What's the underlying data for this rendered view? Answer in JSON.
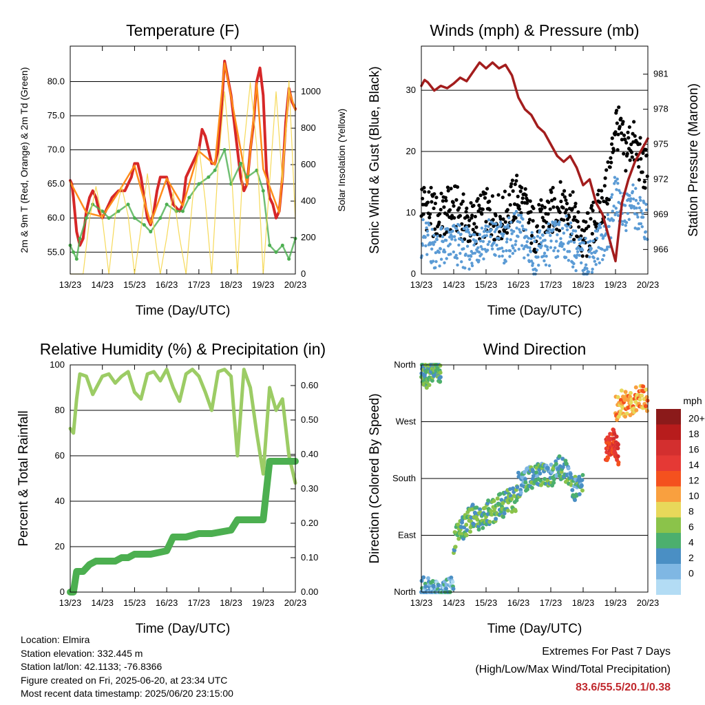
{
  "chart_data": [
    {
      "type": "line",
      "title": "Temperature (F)",
      "xlabel": "Time (Day/UTC)",
      "ylabel": "2m & 9m T (Red, Orange) & 2m Td (Green)",
      "ylabel_right": "Solar Insolation (Yellow)",
      "x_ticks": [
        "13/23",
        "14/23",
        "15/23",
        "16/23",
        "17/23",
        "18/23",
        "19/23",
        "20/23"
      ],
      "y_ticks": [
        "55.0",
        "60.0",
        "65.0",
        "70.0",
        "75.0",
        "80.0"
      ],
      "y_right_ticks": [
        "0",
        "200",
        "400",
        "600",
        "800",
        "1000"
      ],
      "ylim": [
        51.8,
        85.2
      ],
      "ylim_right": [
        0,
        1250
      ],
      "grid": true,
      "series": [
        {
          "name": "2m T",
          "color": "#d62728",
          "x": [
            0,
            0.05,
            0.1,
            0.2,
            0.3,
            0.4,
            0.5,
            0.6,
            0.7,
            0.8,
            0.9,
            1.0,
            1.1,
            1.3,
            1.5,
            1.7,
            1.9,
            2.0,
            2.1,
            2.2,
            2.3,
            2.4,
            2.5,
            2.6,
            2.7,
            2.8,
            3.0,
            3.2,
            3.4,
            3.5,
            3.6,
            3.8,
            4.0,
            4.1,
            4.2,
            4.3,
            4.4,
            4.5,
            4.6,
            4.7,
            4.8,
            5.0,
            5.2,
            5.3,
            5.4,
            5.5,
            5.6,
            5.7,
            5.8,
            5.9,
            6.0,
            6.1,
            6.2,
            6.3,
            6.4,
            6.5,
            6.6,
            6.7,
            6.8,
            6.9,
            7.0
          ],
          "y": [
            65.5,
            65,
            63,
            58,
            56,
            57,
            61,
            63,
            64,
            63,
            61,
            60,
            61,
            63,
            64,
            64,
            66,
            68,
            68,
            66,
            63,
            60,
            59,
            61,
            64,
            66,
            66,
            62,
            61,
            62,
            66,
            68,
            70,
            73,
            72,
            70,
            68,
            68,
            70,
            76,
            83,
            78,
            70,
            66,
            64,
            65,
            70,
            74,
            80,
            82,
            78,
            67,
            63,
            62,
            60,
            61,
            66,
            74,
            79,
            77,
            76
          ]
        },
        {
          "name": "9m T",
          "color": "#ff8c1a",
          "x": [
            0,
            0.5,
            1.0,
            1.5,
            2.0,
            2.5,
            3.0,
            3.5,
            4.0,
            4.5,
            4.8,
            5.0,
            5.5,
            5.8,
            6.0,
            6.5,
            6.8,
            7.0
          ],
          "y": [
            65.3,
            60.8,
            60.2,
            63.8,
            67.7,
            59.2,
            65.8,
            61.8,
            69.8,
            67.8,
            82.7,
            77.8,
            64.8,
            79.8,
            67.2,
            60.8,
            78.8,
            75.8
          ]
        },
        {
          "name": "2m Td",
          "color": "#4caf50",
          "x": [
            0,
            0.1,
            0.2,
            0.3,
            0.5,
            0.7,
            1.0,
            1.2,
            1.5,
            1.8,
            2.0,
            2.3,
            2.5,
            2.8,
            3.0,
            3.3,
            3.5,
            3.7,
            4.0,
            4.3,
            4.5,
            4.8,
            5.0,
            5.3,
            5.5,
            5.8,
            6.0,
            6.2,
            6.4,
            6.6,
            6.8,
            7.0
          ],
          "y": [
            56,
            55,
            54,
            57,
            60,
            62,
            61,
            60,
            61,
            62,
            60,
            59,
            58,
            60,
            62,
            61,
            61,
            63,
            65,
            66,
            67,
            70,
            65,
            68,
            66,
            67,
            64,
            56,
            55,
            56,
            54,
            57
          ]
        },
        {
          "name": "Solar Insolation",
          "color": "#f5d547",
          "axis": "right",
          "x": [
            0,
            0.4,
            0.6,
            0.8,
            1.0,
            1.2,
            1.4,
            1.6,
            1.8,
            2.0,
            2.2,
            2.4,
            2.6,
            2.8,
            3.0,
            3.2,
            3.4,
            3.6,
            3.8,
            4.0,
            4.2,
            4.4,
            4.6,
            4.8,
            5.0,
            5.2,
            5.4,
            5.6,
            5.8,
            6.0,
            6.2,
            6.4,
            6.6,
            6.8,
            7.0
          ],
          "y": [
            0,
            0,
            300,
            480,
            300,
            0,
            320,
            480,
            320,
            0,
            250,
            550,
            250,
            0,
            200,
            450,
            200,
            0,
            400,
            700,
            400,
            0,
            600,
            1000,
            600,
            0,
            700,
            1050,
            700,
            0,
            500,
            1000,
            500,
            1060,
            300
          ]
        }
      ]
    },
    {
      "type": "scatter",
      "title": "Winds (mph) & Pressure (mb)",
      "xlabel": "Time (Day/UTC)",
      "ylabel": "Sonic Wind & Gust (Blue, Black)",
      "ylabel_right": "Station Pressure (Maroon)",
      "x_ticks": [
        "13/23",
        "14/23",
        "15/23",
        "16/23",
        "17/23",
        "18/23",
        "19/23",
        "20/23"
      ],
      "y_ticks": [
        "0",
        "10",
        "20",
        "30"
      ],
      "y_right_ticks": [
        "966",
        "969",
        "972",
        "975",
        "978",
        "981"
      ],
      "ylim": [
        0,
        37.2
      ],
      "ylim_right": [
        963.9,
        983.4
      ],
      "grid": true,
      "series": [
        {
          "name": "Gust",
          "color": "#000000",
          "x": [
            0,
            0.5,
            1.0,
            1.5,
            2.0,
            2.5,
            3.0,
            3.5,
            4.0,
            4.5,
            5.0,
            5.5,
            5.8,
            6.0,
            6.3,
            6.5,
            6.8,
            7.0
          ],
          "y": [
            12,
            9,
            11,
            8,
            10,
            9,
            13,
            7,
            10,
            12,
            5,
            10,
            15,
            25,
            20,
            22,
            18,
            16
          ]
        },
        {
          "name": "Wind",
          "color": "#5b9bd5",
          "x": [
            0,
            0.5,
            1.0,
            1.5,
            2.0,
            2.5,
            3.0,
            3.5,
            4.0,
            4.5,
            5.0,
            5.5,
            5.8,
            6.0,
            6.3,
            6.5,
            6.8,
            7.0
          ],
          "y": [
            6,
            4,
            5,
            4,
            6,
            5,
            7,
            3,
            5,
            6,
            2,
            5,
            7,
            13,
            10,
            12,
            9,
            8
          ]
        },
        {
          "name": "Station Pressure",
          "color": "#a31d1d",
          "axis": "right",
          "x": [
            0,
            0.1,
            0.2,
            0.4,
            0.6,
            0.8,
            1.0,
            1.2,
            1.4,
            1.6,
            1.8,
            2.0,
            2.2,
            2.4,
            2.6,
            2.8,
            3.0,
            3.2,
            3.4,
            3.6,
            3.8,
            4.0,
            4.2,
            4.4,
            4.6,
            4.8,
            5.0,
            5.2,
            5.4,
            5.6,
            5.8,
            6.0,
            6.2,
            6.4,
            6.6,
            6.8,
            7.0
          ],
          "y": [
            980.0,
            980.5,
            980.3,
            979.6,
            980.0,
            979.8,
            980.2,
            980.7,
            980.4,
            981.2,
            982.0,
            981.5,
            982.0,
            981.5,
            981.8,
            980.9,
            979.0,
            978.0,
            977.5,
            976.5,
            976.0,
            975.0,
            974.0,
            973.5,
            974.0,
            973.0,
            971.5,
            972.0,
            970.0,
            969.0,
            967.0,
            965.0,
            970.0,
            972.0,
            973.5,
            974.5,
            975.5
          ]
        }
      ]
    },
    {
      "type": "line",
      "title": "Relative Humidity (%) & Precipitation (in)",
      "xlabel": "Time (Day/UTC)",
      "ylabel": "Percent & Total Rainfall",
      "x_ticks": [
        "13/23",
        "14/23",
        "15/23",
        "16/23",
        "17/23",
        "18/23",
        "19/23",
        "20/23"
      ],
      "y_ticks": [
        "0",
        "20",
        "40",
        "60",
        "80",
        "100"
      ],
      "y_right_ticks": [
        "0.00",
        "0.10",
        "0.20",
        "0.30",
        "0.40",
        "0.50",
        "0.60"
      ],
      "ylim": [
        0,
        100
      ],
      "ylim_right": [
        0,
        0.66
      ],
      "grid": true,
      "series": [
        {
          "name": "Relative Humidity",
          "color": "#9ccc65",
          "x": [
            0,
            0.1,
            0.2,
            0.3,
            0.5,
            0.7,
            1.0,
            1.2,
            1.4,
            1.6,
            1.8,
            2.0,
            2.2,
            2.4,
            2.6,
            2.8,
            3.0,
            3.2,
            3.4,
            3.6,
            3.8,
            4.0,
            4.2,
            4.4,
            4.6,
            4.8,
            5.0,
            5.2,
            5.4,
            5.6,
            5.8,
            6.0,
            6.2,
            6.4,
            6.6,
            6.8,
            7.0
          ],
          "y": [
            72,
            70,
            85,
            96,
            95,
            87,
            95,
            96,
            92,
            95,
            97,
            88,
            85,
            96,
            97,
            93,
            98,
            90,
            84,
            96,
            98,
            95,
            88,
            80,
            97,
            98,
            95,
            60,
            98,
            90,
            70,
            52,
            90,
            80,
            85,
            60,
            48
          ]
        },
        {
          "name": "Total Precipitation",
          "color": "#4caf50",
          "axis": "right",
          "x": [
            0,
            0.1,
            0.2,
            0.4,
            0.6,
            0.8,
            1.0,
            1.2,
            1.4,
            1.6,
            1.8,
            2.0,
            2.5,
            3.0,
            3.2,
            3.6,
            4.0,
            4.4,
            5.0,
            5.2,
            5.6,
            6.0,
            6.2,
            6.6,
            7.0
          ],
          "y": [
            0,
            0,
            0.06,
            0.06,
            0.08,
            0.09,
            0.09,
            0.09,
            0.09,
            0.1,
            0.1,
            0.11,
            0.11,
            0.12,
            0.16,
            0.16,
            0.17,
            0.17,
            0.18,
            0.21,
            0.21,
            0.21,
            0.38,
            0.38,
            0.38
          ]
        }
      ]
    },
    {
      "type": "scatter",
      "title": "Wind Direction",
      "xlabel": "Time (Day/UTC)",
      "ylabel": "Direction (Colored By Speed)",
      "x_ticks": [
        "13/23",
        "14/23",
        "15/23",
        "16/23",
        "17/23",
        "18/23",
        "19/23",
        "20/23"
      ],
      "y_ticks": [
        "North",
        "East",
        "South",
        "West",
        "North"
      ],
      "ylim": [
        0,
        360
      ],
      "grid": true,
      "colorbar": {
        "title": "mph",
        "labels": [
          "20+",
          "18",
          "16",
          "14",
          "12",
          "10",
          "8",
          "6",
          "4",
          "2",
          "0"
        ],
        "colors": [
          "#8b1a1a",
          "#b71c1c",
          "#d32f2f",
          "#e53935",
          "#f4511e",
          "#f9a03f",
          "#e8d85a",
          "#8bc34a",
          "#4caf6e",
          "#4a8fc4",
          "#7fb7e3",
          "#b3dcf4"
        ]
      },
      "points": [
        {
          "x": [
            0,
            0.1,
            0.2,
            0.3,
            0.4,
            0.5,
            0.6
          ],
          "y": [
            350,
            345,
            340,
            355,
            352,
            348,
            345
          ],
          "speed": 6
        },
        {
          "x": [
            0,
            0.2,
            0.4,
            0.6,
            0.8,
            1.0
          ],
          "y": [
            5,
            3,
            2,
            1,
            4,
            10
          ],
          "speed": 3
        },
        {
          "x": [
            1.0,
            1.2,
            1.4,
            1.6,
            1.8,
            2.0,
            2.2,
            2.4,
            2.6,
            2.8,
            3.0
          ],
          "y": [
            80,
            95,
            110,
            120,
            115,
            125,
            130,
            135,
            140,
            145,
            150
          ],
          "speed": 6
        },
        {
          "x": [
            3.0,
            3.2,
            3.4,
            3.6,
            3.8,
            4.0,
            4.2,
            4.4,
            4.6,
            4.8,
            5.0
          ],
          "y": [
            170,
            175,
            180,
            185,
            190,
            185,
            195,
            200,
            175,
            160,
            180
          ],
          "speed": 5
        },
        {
          "x": [
            5.7,
            5.8,
            5.9,
            6.0,
            6.1
          ],
          "y": [
            225,
            230,
            240,
            235,
            220
          ],
          "speed": 16
        },
        {
          "x": [
            6.0,
            6.2,
            6.4,
            6.6,
            6.8,
            7.0
          ],
          "y": [
            290,
            300,
            295,
            305,
            310,
            300
          ],
          "speed": 12
        }
      ]
    }
  ],
  "info": {
    "location": "Location: Elmira",
    "elevation": "Station elevation: 332.445 m",
    "latlon": "Station lat/lon: 42.1133; -76.8366",
    "created": "Figure created on Fri, 2025-06-20, at 23:34 UTC",
    "recent": "Most recent data timestamp: 2025/06/20 23:15:00"
  },
  "extremes": {
    "line1": "Extremes For Past 7 Days",
    "line2": "(High/Low/Max Wind/Total Precipitation)",
    "values": "83.6/55.5/20.1/0.38"
  }
}
